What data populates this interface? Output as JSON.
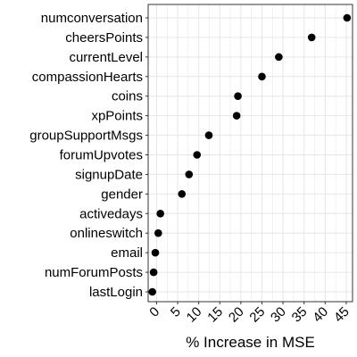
{
  "chart_data": {
    "type": "scatter",
    "title": "",
    "xlabel": "% Increase in MSE",
    "ylabel": "",
    "xlim": [
      -2,
      46.5
    ],
    "xticks": [
      "0",
      "5",
      "10",
      "15",
      "20",
      "25",
      "30",
      "35",
      "40",
      "45"
    ],
    "grid": true,
    "legend": "none",
    "point_color": "#000000",
    "grid_color": "#e6e6e6",
    "axis_color": "#333333",
    "categories": [
      "numconversation",
      "cheersPoints",
      "currentLevel",
      "compassionHearts",
      "coins",
      "xpPoints",
      "groupSupportMsgs",
      "forumUpvotes",
      "signupDate",
      "gender",
      "activedays",
      "onlineswitch",
      "email",
      "numForumPosts",
      "lastLogin"
    ],
    "values": [
      45.2,
      36.8,
      29.0,
      25.0,
      19.3,
      19.0,
      12.4,
      9.6,
      7.7,
      6.0,
      0.9,
      0.4,
      -0.3,
      -0.7,
      -1.0
    ]
  }
}
